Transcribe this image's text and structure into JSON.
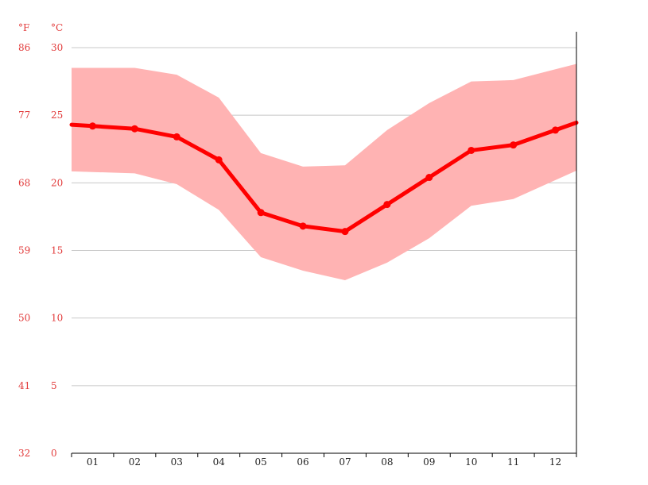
{
  "colors": {
    "line": "#ff0000",
    "band": "#ffb3b3",
    "grid": "#c8c8c8",
    "axis": "#000000",
    "tick_label": "#e23b3b",
    "x_label": "#222222"
  },
  "chart_data": {
    "type": "line",
    "units": {
      "left": "°F",
      "right": "°C"
    },
    "categories": [
      "01",
      "02",
      "03",
      "04",
      "05",
      "06",
      "07",
      "08",
      "09",
      "10",
      "11",
      "12"
    ],
    "y_ticks_c": [
      "0",
      "5",
      "10",
      "15",
      "20",
      "25",
      "30"
    ],
    "y_ticks_f": [
      "32",
      "41",
      "50",
      "59",
      "68",
      "77",
      "86"
    ],
    "ylim": [
      0,
      30
    ],
    "grid": true,
    "series": [
      {
        "values": [
          24.2,
          24.0,
          23.4,
          21.7,
          17.8,
          16.8,
          16.4,
          18.4,
          20.4,
          22.4,
          22.8,
          23.9
        ]
      }
    ],
    "band": {
      "max": [
        28.5,
        28.5,
        28.0,
        26.3,
        22.2,
        21.2,
        21.3,
        23.9,
        25.9,
        27.5,
        27.6,
        28.4
      ],
      "min": [
        20.8,
        20.7,
        19.9,
        18.0,
        14.5,
        13.5,
        12.8,
        14.1,
        15.9,
        18.3,
        18.8,
        20.2
      ]
    }
  }
}
